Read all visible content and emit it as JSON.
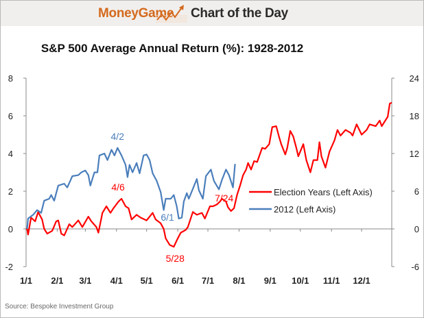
{
  "header": {
    "brand": "MoneyGame",
    "tagline": "Chart of the Day",
    "brand_color": "#d46a1e"
  },
  "source": "Source: Bespoke Investment Group",
  "chart_data": {
    "type": "line",
    "title": "S&P 500 Average Annual Return (%): 1928-2012",
    "x_ticks": [
      "1/1",
      "2/1",
      "3/1",
      "4/1",
      "5/1",
      "6/1",
      "7/1",
      "8/1",
      "9/1",
      "10/1",
      "11/1",
      "12/1"
    ],
    "y_left": {
      "range": [
        -2,
        8
      ],
      "ticks": [
        "8",
        "6",
        "4",
        "2",
        "0",
        "-2"
      ]
    },
    "y_right": {
      "range": [
        -6,
        24
      ],
      "ticks": [
        "24",
        "18",
        "12",
        "6",
        "0",
        "-6"
      ]
    },
    "grid": false,
    "legend_position": "center-right",
    "series": [
      {
        "name": "Election Years (Left Axis)",
        "color": "#ff0000",
        "axis": "left",
        "points": [
          [
            "1/1",
            0
          ],
          [
            "1/2",
            0
          ],
          [
            "1/3",
            -0.3
          ],
          [
            "1/6",
            0.6
          ],
          [
            "1/10",
            0.4
          ],
          [
            "1/13",
            0.9
          ],
          [
            "1/17",
            0.5
          ],
          [
            "1/19",
            0
          ],
          [
            "1/22",
            -0.25
          ],
          [
            "1/27",
            -0.1
          ],
          [
            "1/31",
            0.4
          ],
          [
            "2/2",
            0.45
          ],
          [
            "2/5",
            -0.25
          ],
          [
            "2/8",
            -0.35
          ],
          [
            "2/13",
            0.25
          ],
          [
            "2/16",
            0.1
          ],
          [
            "2/22",
            0.45
          ],
          [
            "2/26",
            0.1
          ],
          [
            "3/4",
            0.65
          ],
          [
            "3/7",
            0.4
          ],
          [
            "3/12",
            0.1
          ],
          [
            "3/14",
            -0.2
          ],
          [
            "3/18",
            0.85
          ],
          [
            "3/22",
            1.2
          ],
          [
            "3/26",
            0.85
          ],
          [
            "3/29",
            1.1
          ],
          [
            "4/3",
            1.45
          ],
          [
            "4/6",
            1.6
          ],
          [
            "4/10",
            1.2
          ],
          [
            "4/13",
            1.1
          ],
          [
            "4/16",
            0.5
          ],
          [
            "4/21",
            0.75
          ],
          [
            "4/25",
            0.6
          ],
          [
            "5/1",
            0.45
          ],
          [
            "5/7",
            0.85
          ],
          [
            "5/10",
            0.5
          ],
          [
            "5/15",
            0.3
          ],
          [
            "5/18",
            0
          ],
          [
            "5/20",
            -0.5
          ],
          [
            "5/24",
            -0.85
          ],
          [
            "5/28",
            -0.95
          ],
          [
            "6/1",
            -0.5
          ],
          [
            "6/4",
            -0.2
          ],
          [
            "6/9",
            -0.05
          ],
          [
            "6/11",
            0.1
          ],
          [
            "6/16",
            0.9
          ],
          [
            "6/20",
            0.75
          ],
          [
            "6/25",
            0.85
          ],
          [
            "6/28",
            0.55
          ],
          [
            "7/3",
            1.2
          ],
          [
            "7/6",
            1.2
          ],
          [
            "7/10",
            1.3
          ],
          [
            "7/13",
            1.45
          ],
          [
            "7/15",
            1.6
          ],
          [
            "7/19",
            1.45
          ],
          [
            "7/21",
            1.15
          ],
          [
            "7/24",
            0.95
          ],
          [
            "7/27",
            1.1
          ],
          [
            "7/30",
            1.8
          ],
          [
            "8/2",
            2.3
          ],
          [
            "8/5",
            2.85
          ],
          [
            "8/8",
            3.15
          ],
          [
            "8/10",
            3.5
          ],
          [
            "8/13",
            3.15
          ],
          [
            "8/16",
            3.6
          ],
          [
            "8/19",
            3.55
          ],
          [
            "8/24",
            4.3
          ],
          [
            "8/27",
            4.25
          ],
          [
            "8/31",
            4.5
          ],
          [
            "9/3",
            5.4
          ],
          [
            "9/7",
            5.45
          ],
          [
            "9/10",
            4.85
          ],
          [
            "9/12",
            4.5
          ],
          [
            "9/16",
            3.95
          ],
          [
            "9/18",
            4.3
          ],
          [
            "9/21",
            5.2
          ],
          [
            "9/24",
            4.9
          ],
          [
            "9/27",
            4.3
          ],
          [
            "9/29",
            3.85
          ],
          [
            "10/4",
            4.5
          ],
          [
            "10/7",
            3.65
          ],
          [
            "10/11",
            3.0
          ],
          [
            "10/14",
            3.65
          ],
          [
            "10/18",
            3.65
          ],
          [
            "10/20",
            4.6
          ],
          [
            "10/22",
            3.85
          ],
          [
            "10/26",
            3.25
          ],
          [
            "10/30",
            4.1
          ],
          [
            "11/4",
            4.7
          ],
          [
            "11/7",
            5.25
          ],
          [
            "11/10",
            4.95
          ],
          [
            "11/15",
            5.25
          ],
          [
            "11/20",
            5.1
          ],
          [
            "11/22",
            4.95
          ],
          [
            "11/26",
            5.55
          ],
          [
            "12/1",
            5.0
          ],
          [
            "12/6",
            5.25
          ],
          [
            "12/9",
            5.55
          ],
          [
            "12/15",
            5.45
          ],
          [
            "12/19",
            5.75
          ],
          [
            "12/21",
            5.45
          ],
          [
            "12/27",
            5.95
          ],
          [
            "12/29",
            6.65
          ],
          [
            "12/31",
            6.7
          ]
        ]
      },
      {
        "name": "2012 (Left Axis)",
        "color": "#4a7ebb",
        "axis": "left",
        "points": [
          [
            "1/2",
            0
          ],
          [
            "1/3",
            0.55
          ],
          [
            "1/8",
            0.75
          ],
          [
            "1/12",
            1.0
          ],
          [
            "1/16",
            0.85
          ],
          [
            "1/19",
            1.5
          ],
          [
            "1/24",
            1.6
          ],
          [
            "1/26",
            1.8
          ],
          [
            "1/29",
            1.5
          ],
          [
            "2/2",
            2.3
          ],
          [
            "2/8",
            2.4
          ],
          [
            "2/11",
            2.2
          ],
          [
            "2/14",
            2.55
          ],
          [
            "2/16",
            2.8
          ],
          [
            "2/22",
            2.85
          ],
          [
            "2/25",
            3.0
          ],
          [
            "3/1",
            3.1
          ],
          [
            "3/4",
            2.85
          ],
          [
            "3/6",
            2.3
          ],
          [
            "3/10",
            3.0
          ],
          [
            "3/13",
            3.0
          ],
          [
            "3/15",
            3.9
          ],
          [
            "3/20",
            4.0
          ],
          [
            "3/23",
            3.65
          ],
          [
            "3/27",
            4.2
          ],
          [
            "3/30",
            3.9
          ],
          [
            "4/2",
            4.3
          ],
          [
            "4/6",
            3.9
          ],
          [
            "4/10",
            3.4
          ],
          [
            "4/12",
            2.75
          ],
          [
            "4/14",
            3.4
          ],
          [
            "4/17",
            3.0
          ],
          [
            "4/21",
            3.5
          ],
          [
            "4/24",
            2.95
          ],
          [
            "4/28",
            3.9
          ],
          [
            "5/1",
            3.95
          ],
          [
            "5/4",
            3.65
          ],
          [
            "5/7",
            2.95
          ],
          [
            "5/11",
            2.55
          ],
          [
            "5/15",
            1.95
          ],
          [
            "5/18",
            1.0
          ],
          [
            "5/20",
            1.6
          ],
          [
            "5/25",
            1.6
          ],
          [
            "5/28",
            1.8
          ],
          [
            "5/31",
            1.2
          ],
          [
            "6/2",
            0.55
          ],
          [
            "6/5",
            0.6
          ],
          [
            "6/7",
            1.45
          ],
          [
            "6/10",
            1.9
          ],
          [
            "6/12",
            1.6
          ],
          [
            "6/17",
            2.25
          ],
          [
            "6/20",
            2.65
          ],
          [
            "6/22",
            2.05
          ],
          [
            "6/26",
            1.6
          ],
          [
            "6/29",
            2.8
          ],
          [
            "7/4",
            3.15
          ],
          [
            "7/7",
            2.55
          ],
          [
            "7/12",
            2.1
          ],
          [
            "7/15",
            2.6
          ],
          [
            "7/19",
            3.15
          ],
          [
            "7/22",
            2.85
          ],
          [
            "7/26",
            2.2
          ],
          [
            "7/28",
            3.45
          ]
        ]
      }
    ],
    "annotations": [
      {
        "text": "4/2",
        "series": "2012 (Left Axis)",
        "color": "#4a7ebb",
        "date": "4/2",
        "value": 4.3
      },
      {
        "text": "4/6",
        "series": "Election Years (Left Axis)",
        "color": "#ff0000",
        "date": "4/6",
        "value": 1.6
      },
      {
        "text": "6/1",
        "series": "2012 (Left Axis)",
        "color": "#4a7ebb",
        "date": "6/1",
        "value": 0.55
      },
      {
        "text": "5/28",
        "series": "Election Years (Left Axis)",
        "color": "#ff0000",
        "date": "5/28",
        "value": -0.95
      },
      {
        "text": "7/24",
        "series": "Election Years (Left Axis)",
        "color": "#ff0000",
        "date": "7/24",
        "value": 0.95
      }
    ]
  }
}
